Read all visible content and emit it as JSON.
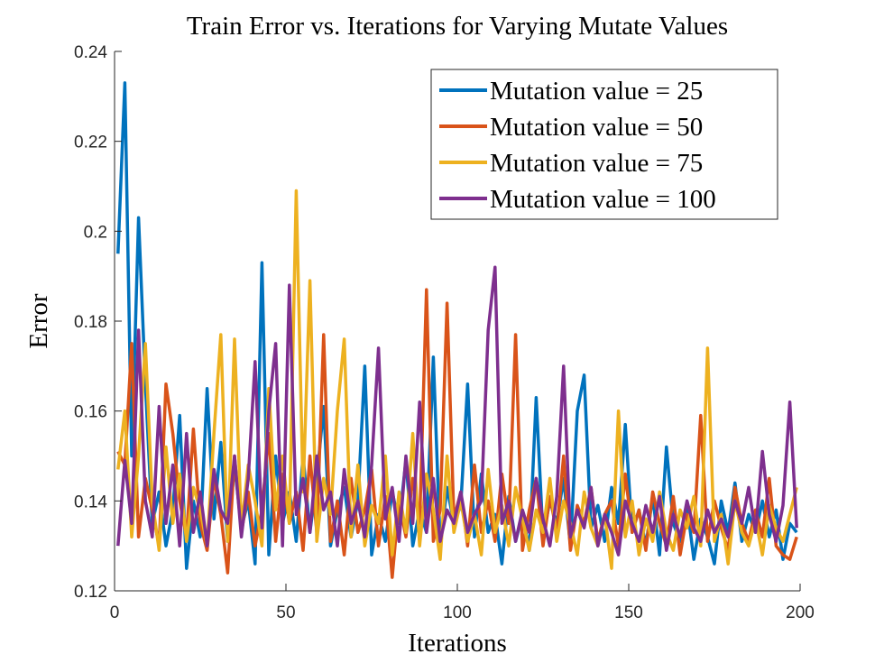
{
  "chart_data": {
    "type": "line",
    "title": "Train Error vs. Iterations for Varying Mutate Values",
    "xlabel": "Iterations",
    "ylabel": "Error",
    "xlim": [
      0,
      200
    ],
    "ylim": [
      0.12,
      0.24
    ],
    "xticks": [
      0,
      50,
      100,
      150,
      200
    ],
    "yticks": [
      0.12,
      0.14,
      0.16,
      0.18,
      0.2,
      0.22,
      0.24
    ],
    "legend": "upper right",
    "x": [
      1,
      3,
      5,
      7,
      9,
      11,
      13,
      15,
      17,
      19,
      21,
      23,
      25,
      27,
      29,
      31,
      33,
      35,
      37,
      39,
      41,
      43,
      45,
      47,
      49,
      51,
      53,
      55,
      57,
      59,
      61,
      63,
      65,
      67,
      69,
      71,
      73,
      75,
      77,
      79,
      81,
      83,
      85,
      87,
      89,
      91,
      93,
      95,
      97,
      99,
      101,
      103,
      105,
      107,
      109,
      111,
      113,
      115,
      117,
      119,
      121,
      123,
      125,
      127,
      129,
      131,
      133,
      135,
      137,
      139,
      141,
      143,
      145,
      147,
      149,
      151,
      153,
      155,
      157,
      159,
      161,
      163,
      165,
      167,
      169,
      171,
      173,
      175,
      177,
      179,
      181,
      183,
      185,
      187,
      189,
      191,
      193,
      195,
      197,
      199
    ],
    "series": [
      {
        "name": "Mutation value = 25",
        "color": "#0072BD",
        "values": [
          0.195,
          0.233,
          0.15,
          0.203,
          0.166,
          0.135,
          0.142,
          0.13,
          0.138,
          0.159,
          0.125,
          0.14,
          0.132,
          0.165,
          0.136,
          0.153,
          0.131,
          0.148,
          0.134,
          0.14,
          0.126,
          0.193,
          0.128,
          0.15,
          0.135,
          0.142,
          0.131,
          0.15,
          0.133,
          0.145,
          0.161,
          0.13,
          0.138,
          0.143,
          0.132,
          0.14,
          0.17,
          0.128,
          0.137,
          0.131,
          0.142,
          0.135,
          0.149,
          0.13,
          0.138,
          0.133,
          0.172,
          0.13,
          0.143,
          0.135,
          0.139,
          0.166,
          0.132,
          0.146,
          0.133,
          0.137,
          0.126,
          0.141,
          0.131,
          0.137,
          0.129,
          0.163,
          0.132,
          0.14,
          0.135,
          0.145,
          0.13,
          0.16,
          0.168,
          0.134,
          0.139,
          0.131,
          0.143,
          0.135,
          0.157,
          0.133,
          0.138,
          0.13,
          0.141,
          0.128,
          0.152,
          0.135,
          0.131,
          0.139,
          0.127,
          0.136,
          0.132,
          0.126,
          0.14,
          0.133,
          0.144,
          0.131,
          0.137,
          0.133,
          0.14,
          0.132,
          0.138,
          0.127,
          0.135,
          0.133
        ]
      },
      {
        "name": "Mutation value = 50",
        "color": "#D95319",
        "values": [
          0.151,
          0.148,
          0.175,
          0.132,
          0.145,
          0.138,
          0.13,
          0.166,
          0.155,
          0.14,
          0.132,
          0.156,
          0.135,
          0.129,
          0.145,
          0.137,
          0.124,
          0.15,
          0.133,
          0.142,
          0.13,
          0.138,
          0.155,
          0.131,
          0.146,
          0.135,
          0.142,
          0.129,
          0.15,
          0.133,
          0.177,
          0.131,
          0.14,
          0.128,
          0.145,
          0.133,
          0.138,
          0.147,
          0.13,
          0.141,
          0.123,
          0.14,
          0.132,
          0.145,
          0.135,
          0.187,
          0.131,
          0.138,
          0.184,
          0.136,
          0.142,
          0.13,
          0.148,
          0.133,
          0.14,
          0.131,
          0.146,
          0.135,
          0.177,
          0.129,
          0.138,
          0.145,
          0.13,
          0.141,
          0.133,
          0.15,
          0.129,
          0.139,
          0.135,
          0.143,
          0.131,
          0.137,
          0.14,
          0.13,
          0.146,
          0.133,
          0.138,
          0.129,
          0.142,
          0.135,
          0.13,
          0.141,
          0.128,
          0.137,
          0.133,
          0.159,
          0.131,
          0.14,
          0.134,
          0.129,
          0.143,
          0.135,
          0.131,
          0.138,
          0.132,
          0.145,
          0.13,
          0.128,
          0.127,
          0.132
        ]
      },
      {
        "name": "Mutation value = 75",
        "color": "#EDB120",
        "values": [
          0.147,
          0.16,
          0.132,
          0.15,
          0.175,
          0.14,
          0.129,
          0.152,
          0.135,
          0.146,
          0.131,
          0.143,
          0.138,
          0.13,
          0.155,
          0.177,
          0.131,
          0.176,
          0.134,
          0.148,
          0.14,
          0.13,
          0.165,
          0.138,
          0.15,
          0.135,
          0.209,
          0.142,
          0.189,
          0.131,
          0.145,
          0.137,
          0.16,
          0.176,
          0.132,
          0.148,
          0.13,
          0.139,
          0.135,
          0.15,
          0.128,
          0.142,
          0.133,
          0.155,
          0.13,
          0.146,
          0.138,
          0.127,
          0.15,
          0.133,
          0.14,
          0.131,
          0.137,
          0.128,
          0.147,
          0.133,
          0.139,
          0.13,
          0.143,
          0.136,
          0.129,
          0.138,
          0.133,
          0.145,
          0.131,
          0.14,
          0.135,
          0.128,
          0.142,
          0.134,
          0.13,
          0.137,
          0.125,
          0.16,
          0.132,
          0.14,
          0.128,
          0.136,
          0.131,
          0.142,
          0.133,
          0.129,
          0.138,
          0.134,
          0.141,
          0.13,
          0.174,
          0.131,
          0.137,
          0.126,
          0.14,
          0.133,
          0.13,
          0.136,
          0.128,
          0.139,
          0.134,
          0.131,
          0.137,
          0.143
        ]
      },
      {
        "name": "Mutation value = 100",
        "color": "#7E2F8E",
        "values": [
          0.13,
          0.149,
          0.135,
          0.178,
          0.14,
          0.132,
          0.161,
          0.135,
          0.148,
          0.13,
          0.155,
          0.133,
          0.142,
          0.13,
          0.147,
          0.138,
          0.135,
          0.15,
          0.132,
          0.145,
          0.171,
          0.134,
          0.16,
          0.175,
          0.13,
          0.188,
          0.137,
          0.145,
          0.133,
          0.15,
          0.138,
          0.142,
          0.13,
          0.147,
          0.135,
          0.14,
          0.132,
          0.148,
          0.174,
          0.136,
          0.143,
          0.131,
          0.15,
          0.135,
          0.162,
          0.133,
          0.145,
          0.131,
          0.138,
          0.135,
          0.142,
          0.133,
          0.137,
          0.14,
          0.178,
          0.192,
          0.135,
          0.14,
          0.131,
          0.138,
          0.133,
          0.145,
          0.136,
          0.13,
          0.141,
          0.17,
          0.132,
          0.138,
          0.134,
          0.143,
          0.13,
          0.137,
          0.133,
          0.128,
          0.14,
          0.135,
          0.131,
          0.139,
          0.133,
          0.141,
          0.129,
          0.137,
          0.132,
          0.14,
          0.134,
          0.131,
          0.138,
          0.133,
          0.136,
          0.132,
          0.14,
          0.135,
          0.143,
          0.133,
          0.151,
          0.137,
          0.131,
          0.139,
          0.162,
          0.134
        ]
      }
    ]
  }
}
